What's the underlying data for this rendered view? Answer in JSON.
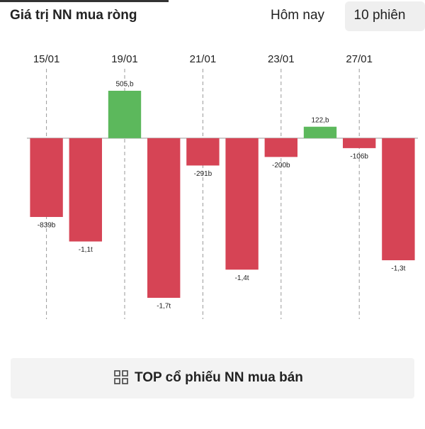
{
  "chart_data": {
    "type": "bar",
    "title": "Giá trị NN mua ròng",
    "categories": [
      "15/01",
      null,
      "19/01",
      null,
      "21/01",
      null,
      "23/01",
      null,
      "27/01",
      null
    ],
    "values": [
      -839,
      -1100,
      505,
      -1700,
      -291,
      -1400,
      -200,
      122,
      -106,
      -1300
    ],
    "value_labels": [
      "-839b",
      "-1,1t",
      "505,b",
      "-1,7t",
      "-291b",
      "-1,4t",
      "-200b",
      "122,b",
      "-106b",
      "-1,3t"
    ],
    "positive_color": "#5cb85c",
    "negative_color": "#d64455"
  },
  "tabs": [
    "Hôm nay",
    "10 phiên"
  ],
  "button": "TOP cổ phiếu NN mua bán"
}
